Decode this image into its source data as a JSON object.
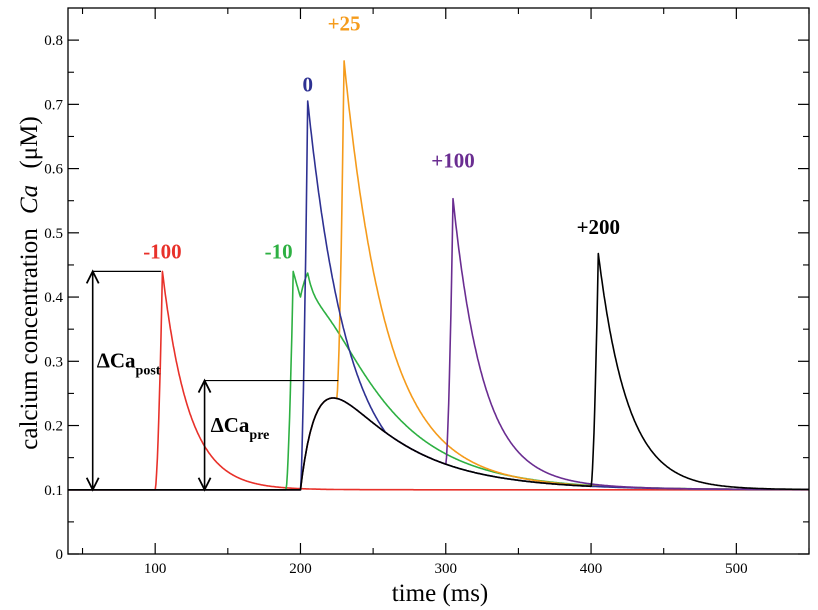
{
  "chart_data": {
    "type": "line",
    "xlabel": "time (ms)",
    "ylabel_main": "calcium concentration",
    "ylabel_symbol": "Ca",
    "ylabel_unit": "(μM)",
    "xlim": [
      40,
      550
    ],
    "ylim": [
      0,
      0.85
    ],
    "x_ticks": [
      100,
      200,
      300,
      400,
      500
    ],
    "y_ticks": [
      0,
      0.1,
      0.2,
      0.3,
      0.4,
      0.5,
      0.6,
      0.7,
      0.8
    ],
    "x_tick_labels": [
      "100",
      "200",
      "300",
      "400",
      "500"
    ],
    "y_tick_labels": [
      "0",
      "0.1",
      "0.2",
      "0.3",
      "0.4",
      "0.5",
      "0.6",
      "0.7",
      "0.8"
    ],
    "baseline": 0.1,
    "pre_onset_ms": 200,
    "series": [
      {
        "name": "-100",
        "color": "#e8312a",
        "onset": 100,
        "peak": 0.44,
        "label_x": 105,
        "label_y": 0.46
      },
      {
        "name": "-10",
        "color": "#2db042",
        "onset": 190,
        "peak": 0.44,
        "label_x": 185,
        "label_y": 0.46
      },
      {
        "name": "0",
        "color": "#2e3192",
        "onset": 200,
        "peak": 0.705,
        "label_x": 205,
        "label_y": 0.72
      },
      {
        "name": "+25",
        "color": "#f59b1b",
        "onset": 225,
        "peak": 0.8,
        "label_x": 230,
        "label_y": 0.815
      },
      {
        "name": "+100",
        "color": "#6a2d91",
        "onset": 300,
        "peak": 0.587,
        "label_x": 305,
        "label_y": 0.602
      },
      {
        "name": "+200",
        "color": "#000000",
        "onset": 400,
        "peak": 0.483,
        "label_x": 405,
        "label_y": 0.498
      }
    ],
    "annotations": {
      "delta_post": {
        "label": "ΔCa",
        "sub": "post",
        "y_bottom": 0.1,
        "y_top": 0.44
      },
      "delta_pre": {
        "label": "ΔCa",
        "sub": "pre",
        "y_bottom": 0.1,
        "y_top": 0.27
      }
    }
  }
}
